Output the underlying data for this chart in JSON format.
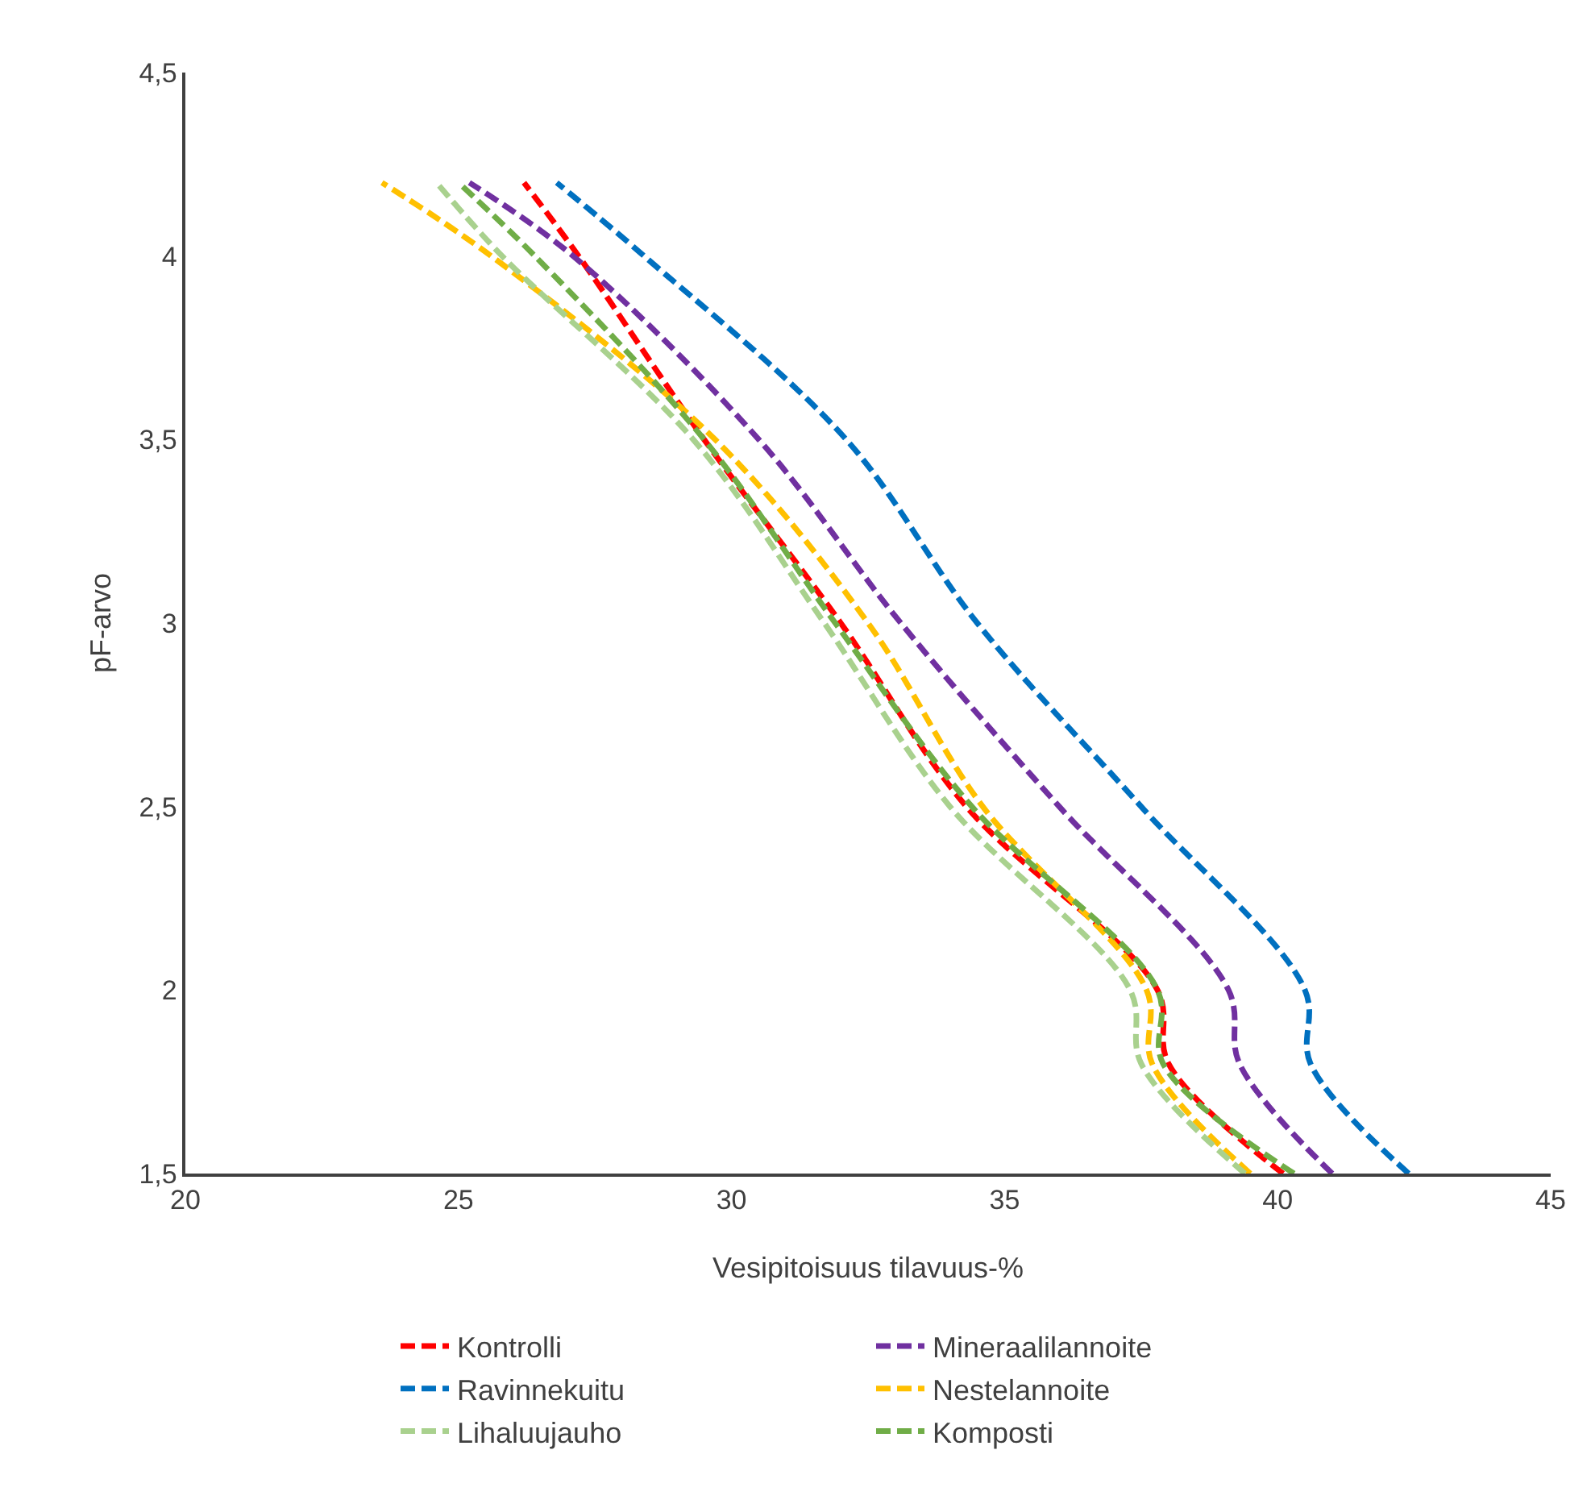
{
  "chart_data": {
    "type": "line",
    "xlabel": "Vesipitoisuus tilavuus-%",
    "ylabel": "pF-arvo",
    "xlim": [
      20,
      45
    ],
    "xticks": [
      20,
      25,
      30,
      35,
      40,
      45
    ],
    "ylim": [
      1.5,
      4.5
    ],
    "yticks": [
      {
        "value": 1.5,
        "label": "1,5"
      },
      {
        "value": 2,
        "label": "2"
      },
      {
        "value": 2.5,
        "label": "2,5"
      },
      {
        "value": 3,
        "label": "3"
      },
      {
        "value": 3.5,
        "label": "3,5"
      },
      {
        "value": 4,
        "label": "4"
      },
      {
        "value": 4.5,
        "label": "4,5"
      }
    ],
    "grid": false,
    "legend": "bottom",
    "marker": "none",
    "line_style": "dashed",
    "series": [
      {
        "name": "Kontrolli",
        "color": "#ff0000",
        "x": [
          40.1,
          38.0,
          37.8,
          34.3,
          32.0,
          29.5,
          27.2,
          26.2
        ],
        "values": [
          1.5,
          1.8,
          2.0,
          2.5,
          3.0,
          3.5,
          4.0,
          4.2
        ]
      },
      {
        "name": "Mineraalilannoite",
        "color": "#7030a0",
        "x": [
          41.0,
          39.3,
          39.1,
          36.0,
          33.1,
          30.5,
          27.1,
          25.2
        ],
        "values": [
          1.5,
          1.8,
          2.0,
          2.5,
          3.0,
          3.5,
          4.0,
          4.2
        ]
      },
      {
        "name": "Ravinnekuitu",
        "color": "#0070c0",
        "x": [
          42.4,
          40.6,
          40.5,
          37.5,
          34.5,
          32.1,
          28.4,
          26.8
        ],
        "values": [
          1.5,
          1.8,
          2.0,
          2.5,
          3.0,
          3.5,
          4.0,
          4.2
        ]
      },
      {
        "name": "Nestelannoite",
        "color": "#ffc000",
        "x": [
          39.5,
          37.7,
          37.6,
          34.6,
          32.5,
          29.7,
          25.6,
          23.6
        ],
        "values": [
          1.5,
          1.8,
          2.0,
          2.5,
          3.0,
          3.5,
          4.0,
          4.2
        ]
      },
      {
        "name": "Lihaluujauho",
        "color": "#a9d18e",
        "x": [
          39.4,
          37.5,
          37.3,
          34.0,
          31.7,
          29.3,
          25.8,
          24.6
        ],
        "values": [
          1.5,
          1.8,
          2.0,
          2.5,
          3.0,
          3.5,
          4.0,
          4.2
        ]
      },
      {
        "name": "Komposti",
        "color": "#70ad47",
        "x": [
          40.3,
          37.9,
          37.8,
          34.4,
          31.9,
          29.5,
          26.4,
          25.0
        ],
        "values": [
          1.5,
          1.8,
          2.0,
          2.5,
          3.0,
          3.5,
          4.0,
          4.2
        ]
      }
    ]
  }
}
